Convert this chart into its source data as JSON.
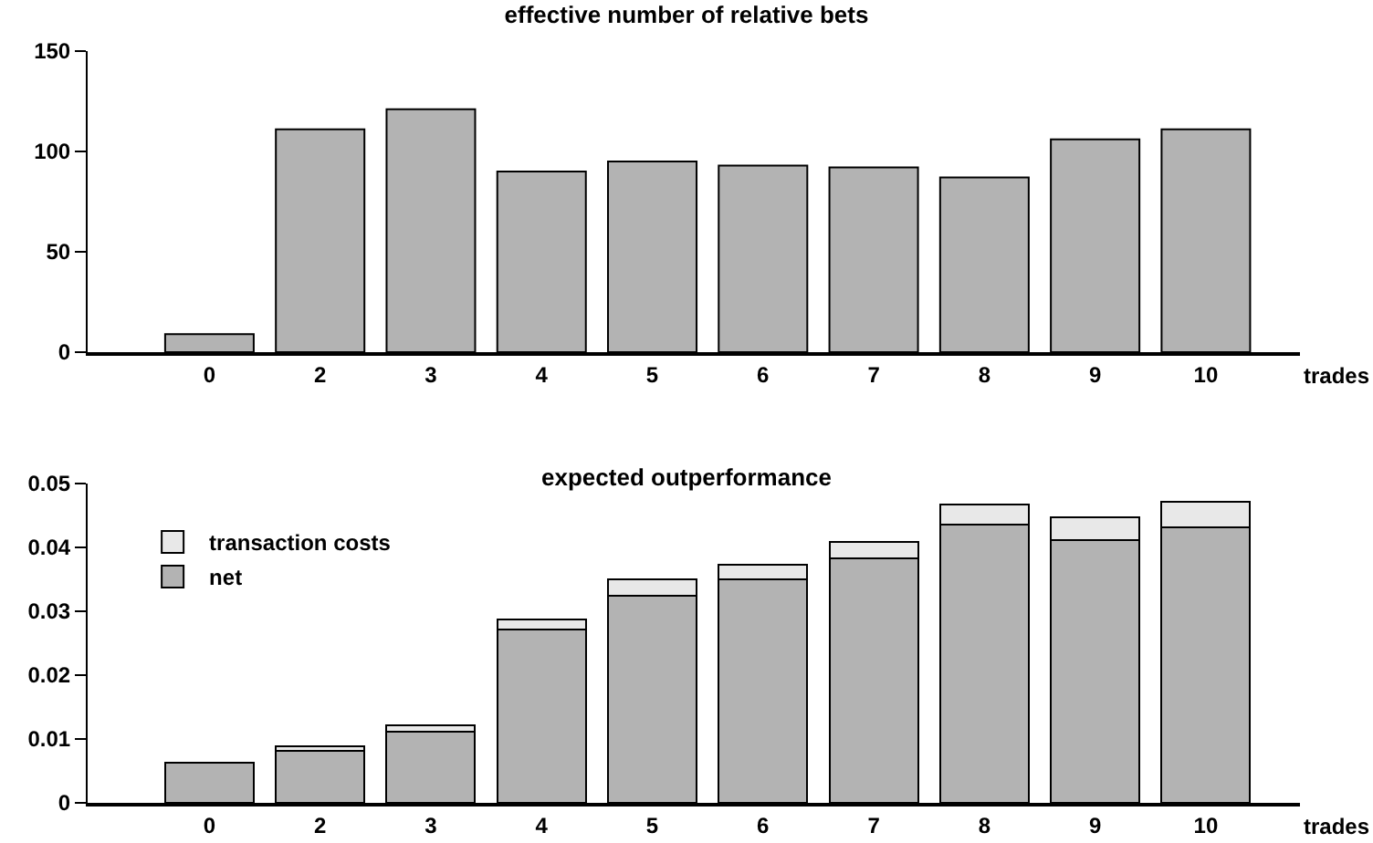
{
  "chart_data": [
    {
      "type": "bar",
      "title": "effective number of relative bets",
      "xlabel": "trades",
      "categories": [
        "0",
        "2",
        "3",
        "4",
        "5",
        "6",
        "7",
        "8",
        "9",
        "10"
      ],
      "series": [
        {
          "color": "#b3b3b3",
          "values": [
            9,
            111,
            121,
            90,
            95,
            93,
            92,
            87,
            106,
            111
          ]
        }
      ],
      "ylim": [
        0,
        150
      ],
      "yticks": [
        0,
        50,
        100,
        150
      ],
      "grid": false,
      "legend": false
    },
    {
      "type": "bar",
      "title": "expected outperformance",
      "xlabel": "trades",
      "categories": [
        "0",
        "2",
        "3",
        "4",
        "5",
        "6",
        "7",
        "8",
        "9",
        "10"
      ],
      "stacked": true,
      "series": [
        {
          "name": "net",
          "color": "#b3b3b3",
          "values": [
            0.0063,
            0.0082,
            0.0111,
            0.0272,
            0.0325,
            0.035,
            0.0383,
            0.0436,
            0.0412,
            0.0432
          ]
        },
        {
          "name": "transaction costs",
          "color": "#e8e8e8",
          "values": [
            null,
            0.0006,
            0.001,
            0.0015,
            0.0025,
            0.0023,
            0.0025,
            0.0031,
            0.0035,
            0.0039
          ]
        }
      ],
      "ylim": [
        0,
        0.05
      ],
      "yticks": [
        0,
        0.01,
        0.02,
        0.03,
        0.04,
        0.05
      ],
      "grid": false,
      "legend": "top left"
    }
  ]
}
